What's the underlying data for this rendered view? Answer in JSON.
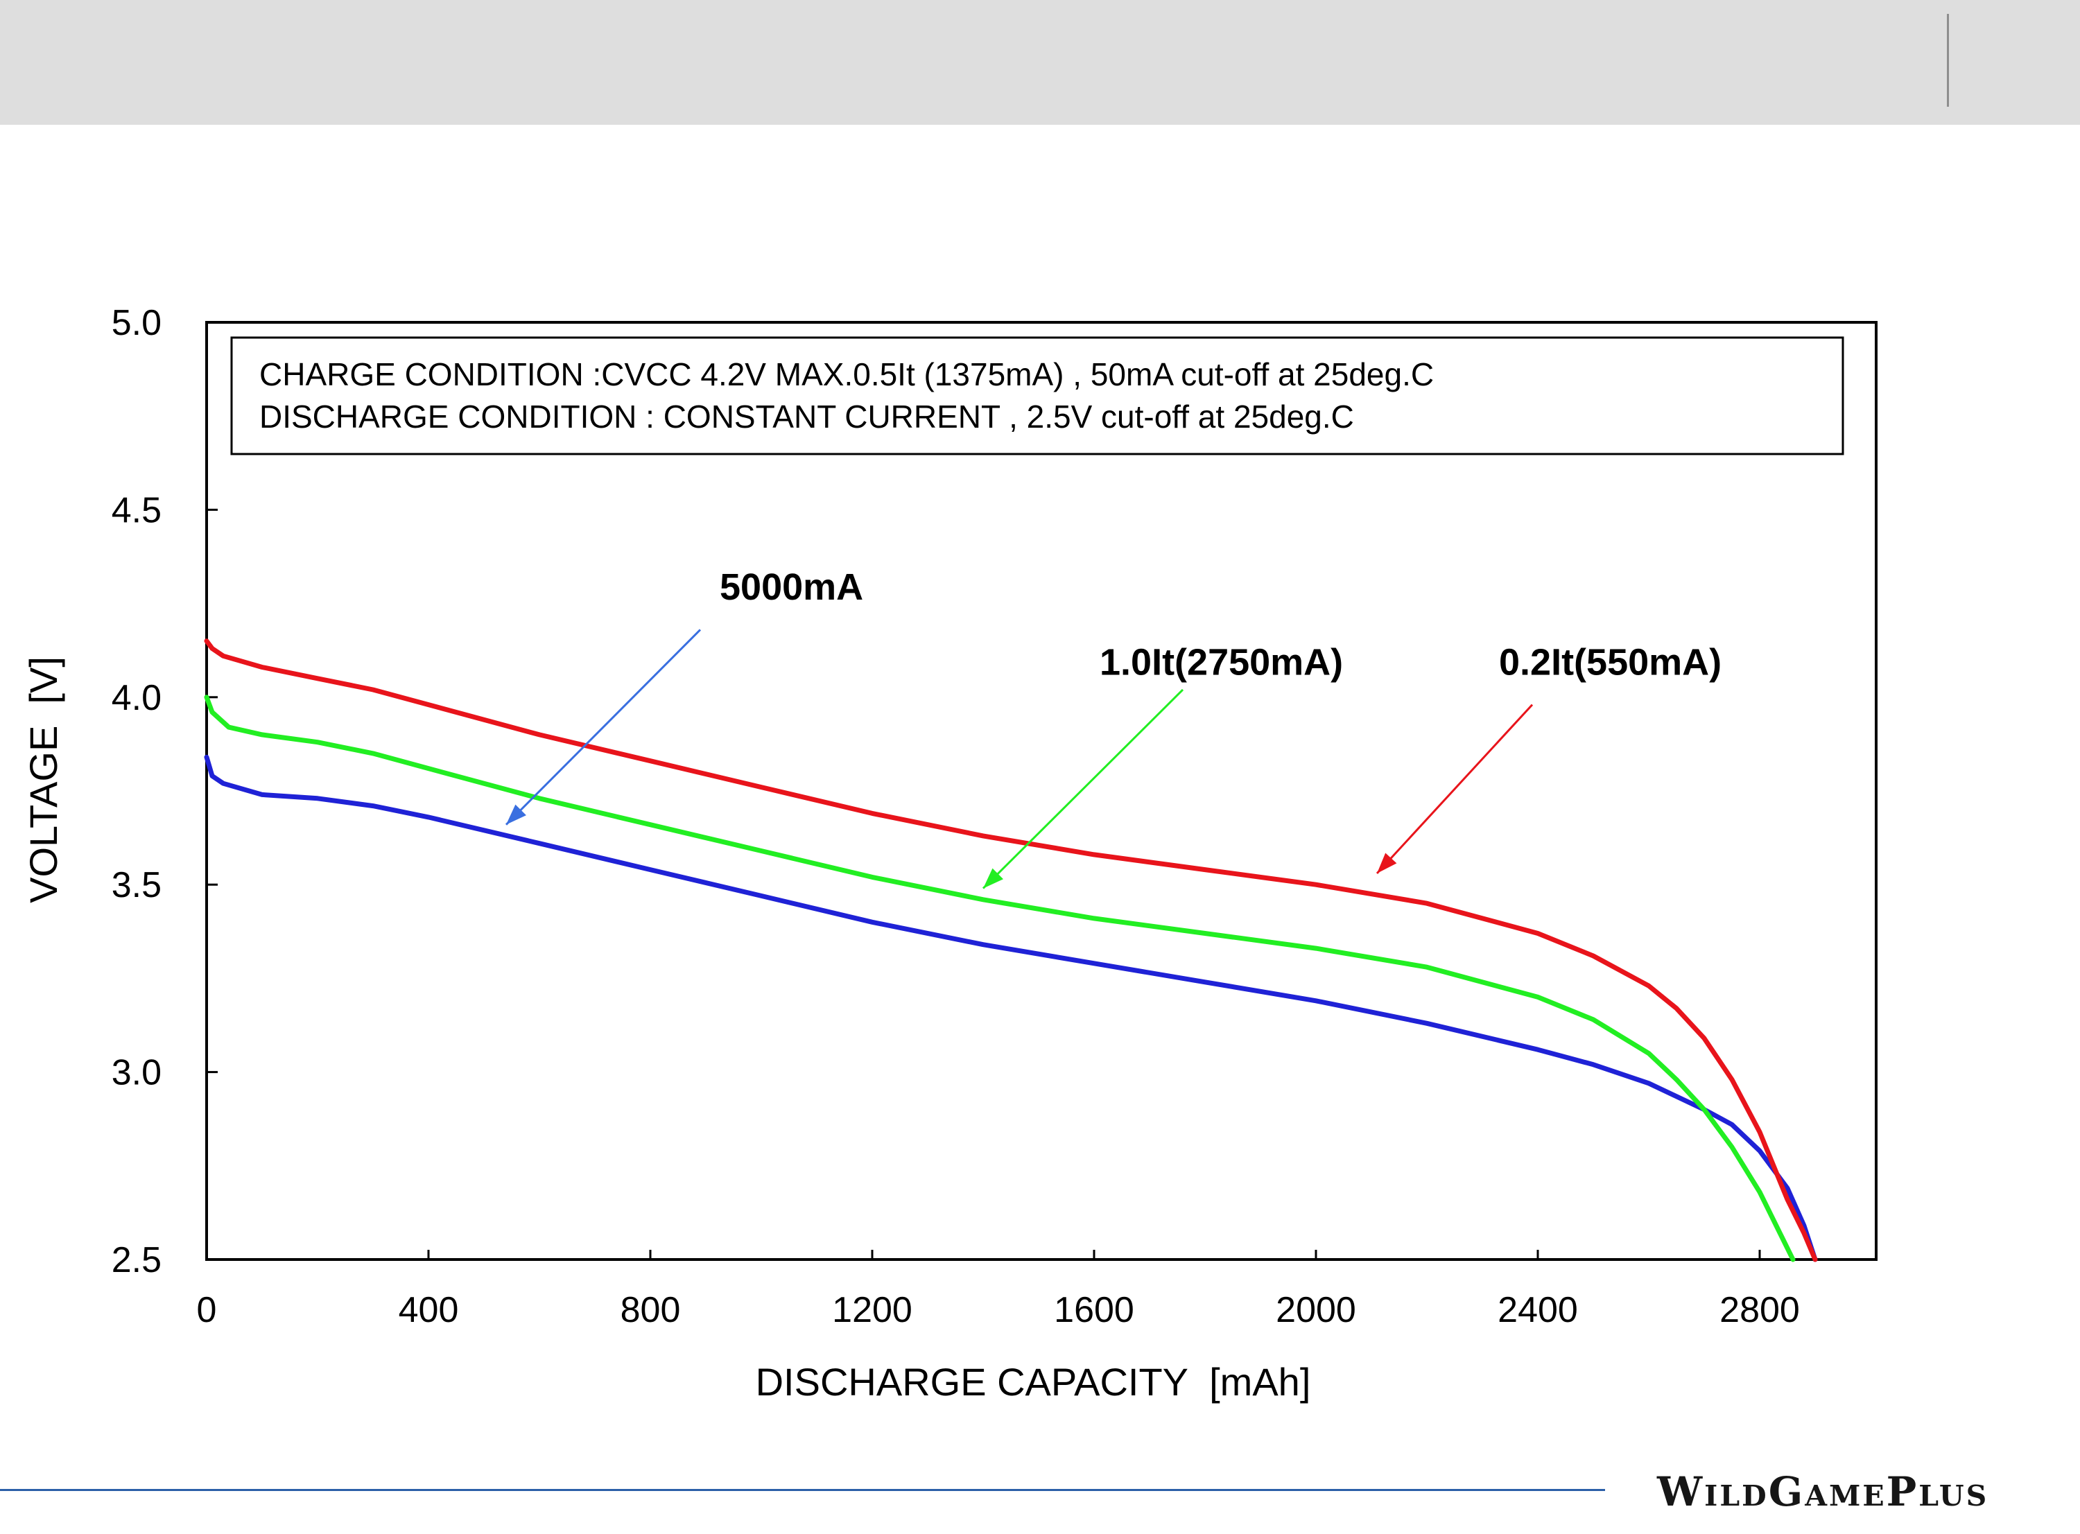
{
  "branding": {
    "footer_brand": "WildGamePlus"
  },
  "colors": {
    "header_band": "#dedede",
    "footer_line": "#2b5fa8",
    "series_0_2it": "#e8141b",
    "series_1_0it": "#22ee22",
    "series_5000": "#1f22d6",
    "arrow_5000": "#3a6fe0"
  },
  "chart_data": {
    "type": "line",
    "xlabel": "DISCHARGE CAPACITY  [mAh]",
    "ylabel": "VOLTAGE  [V]",
    "xlim": [
      0,
      3000
    ],
    "ylim": [
      2.5,
      5.0
    ],
    "x_ticks": [
      0,
      400,
      800,
      1200,
      1600,
      2000,
      2400,
      2800
    ],
    "x_tick_labels": [
      "0",
      "400",
      "800",
      "1200",
      "1600",
      "2000",
      "2400",
      "2800"
    ],
    "y_ticks": [
      2.5,
      3.0,
      3.5,
      4.0,
      4.5,
      5.0
    ],
    "y_tick_labels": [
      "2.5",
      "3.0",
      "3.5",
      "4.0",
      "4.5",
      "5.0"
    ],
    "grid": false,
    "annotation_box": [
      "CHARGE CONDITION :CVCC 4.2V MAX.0.5It (1375mA) , 50mA cut-off at  25deg.C",
      "DISCHARGE CONDITION : CONSTANT CURRENT , 2.5V cut-off at  25deg.C"
    ],
    "series": [
      {
        "name": "0.2It(550mA)",
        "color": "#e8141b",
        "x": [
          0,
          10,
          30,
          100,
          200,
          300,
          400,
          600,
          800,
          1000,
          1200,
          1400,
          1600,
          1800,
          2000,
          2200,
          2400,
          2500,
          2600,
          2650,
          2700,
          2750,
          2800,
          2850,
          2880,
          2900
        ],
        "y": [
          4.15,
          4.13,
          4.11,
          4.08,
          4.05,
          4.02,
          3.98,
          3.9,
          3.83,
          3.76,
          3.69,
          3.63,
          3.58,
          3.54,
          3.5,
          3.45,
          3.37,
          3.31,
          3.23,
          3.17,
          3.09,
          2.98,
          2.84,
          2.66,
          2.57,
          2.5
        ]
      },
      {
        "name": "1.0It(2750mA)",
        "color": "#22ee22",
        "x": [
          0,
          10,
          40,
          100,
          200,
          300,
          400,
          600,
          800,
          1000,
          1200,
          1400,
          1600,
          1800,
          2000,
          2200,
          2400,
          2500,
          2600,
          2650,
          2700,
          2750,
          2800,
          2840,
          2860
        ],
        "y": [
          4.0,
          3.96,
          3.92,
          3.9,
          3.88,
          3.85,
          3.81,
          3.73,
          3.66,
          3.59,
          3.52,
          3.46,
          3.41,
          3.37,
          3.33,
          3.28,
          3.2,
          3.14,
          3.05,
          2.98,
          2.9,
          2.8,
          2.68,
          2.56,
          2.5
        ]
      },
      {
        "name": "5000mA",
        "color": "#1f22d6",
        "x": [
          0,
          10,
          30,
          100,
          200,
          300,
          400,
          600,
          800,
          1000,
          1200,
          1400,
          1600,
          1800,
          2000,
          2200,
          2400,
          2500,
          2600,
          2700,
          2750,
          2800,
          2850,
          2880,
          2900
        ],
        "y": [
          3.84,
          3.79,
          3.77,
          3.74,
          3.73,
          3.71,
          3.68,
          3.61,
          3.54,
          3.47,
          3.4,
          3.34,
          3.29,
          3.24,
          3.19,
          3.13,
          3.06,
          3.02,
          2.97,
          2.9,
          2.86,
          2.79,
          2.69,
          2.59,
          2.5
        ]
      }
    ],
    "callouts": [
      {
        "label": "5000mA",
        "series": "5000mA",
        "text_at": [
          925,
          4.26
        ],
        "from": [
          890,
          4.18
        ],
        "to": [
          540,
          3.66
        ]
      },
      {
        "label": "1.0It(2750mA)",
        "series": "1.0It(2750mA)",
        "text_at": [
          1610,
          4.06
        ],
        "from": [
          1760,
          4.02
        ],
        "to": [
          1400,
          3.49
        ]
      },
      {
        "label": "0.2It(550mA)",
        "series": "0.2It(550mA)",
        "text_at": [
          2330,
          4.06
        ],
        "from": [
          2390,
          3.98
        ],
        "to": [
          2110,
          3.53
        ]
      }
    ]
  }
}
